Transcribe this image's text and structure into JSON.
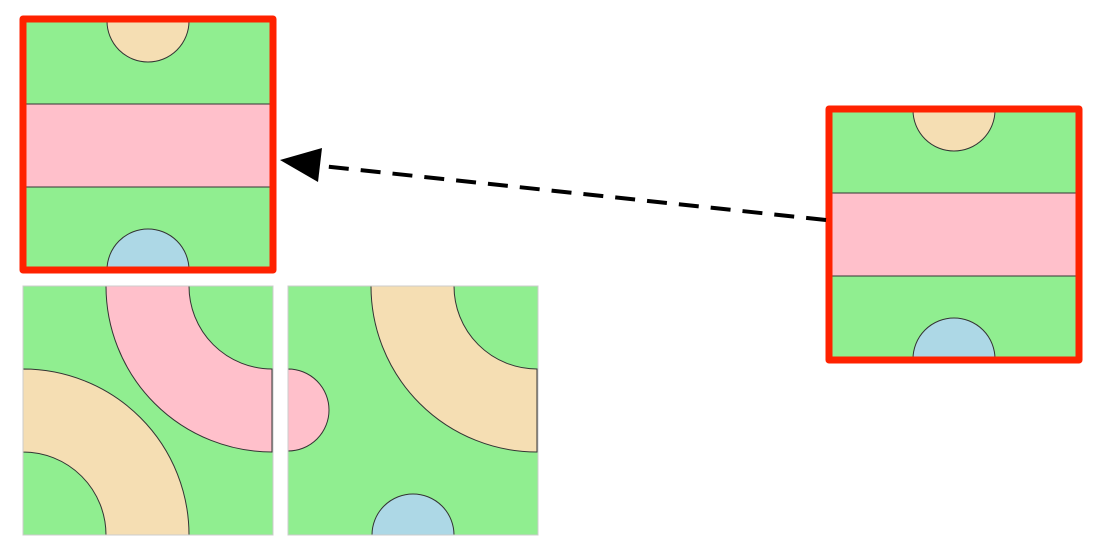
{
  "colors": {
    "background": "#ffffff",
    "grass": "#90ee90",
    "pink": "#ffc0cb",
    "tan": "#f5deb3",
    "blue": "#add8e6",
    "outline": "#333333",
    "highlight": "#ff2200",
    "arrow": "#000000"
  },
  "board": {
    "tiles": [
      {
        "name": "board-tile-top-left",
        "pattern": "straight-band-two-half-circles",
        "highlighted": true
      },
      {
        "name": "board-tile-bottom-left",
        "pattern": "curved-bands"
      },
      {
        "name": "board-tile-bottom-middle",
        "pattern": "curved-band-half-circles"
      }
    ]
  },
  "held_tile": {
    "pattern": "straight-band-two-half-circles",
    "highlighted": true
  },
  "move": {
    "from": "held-tile",
    "to": "board-tile-top-left",
    "line_style": "dashed-arrow"
  }
}
